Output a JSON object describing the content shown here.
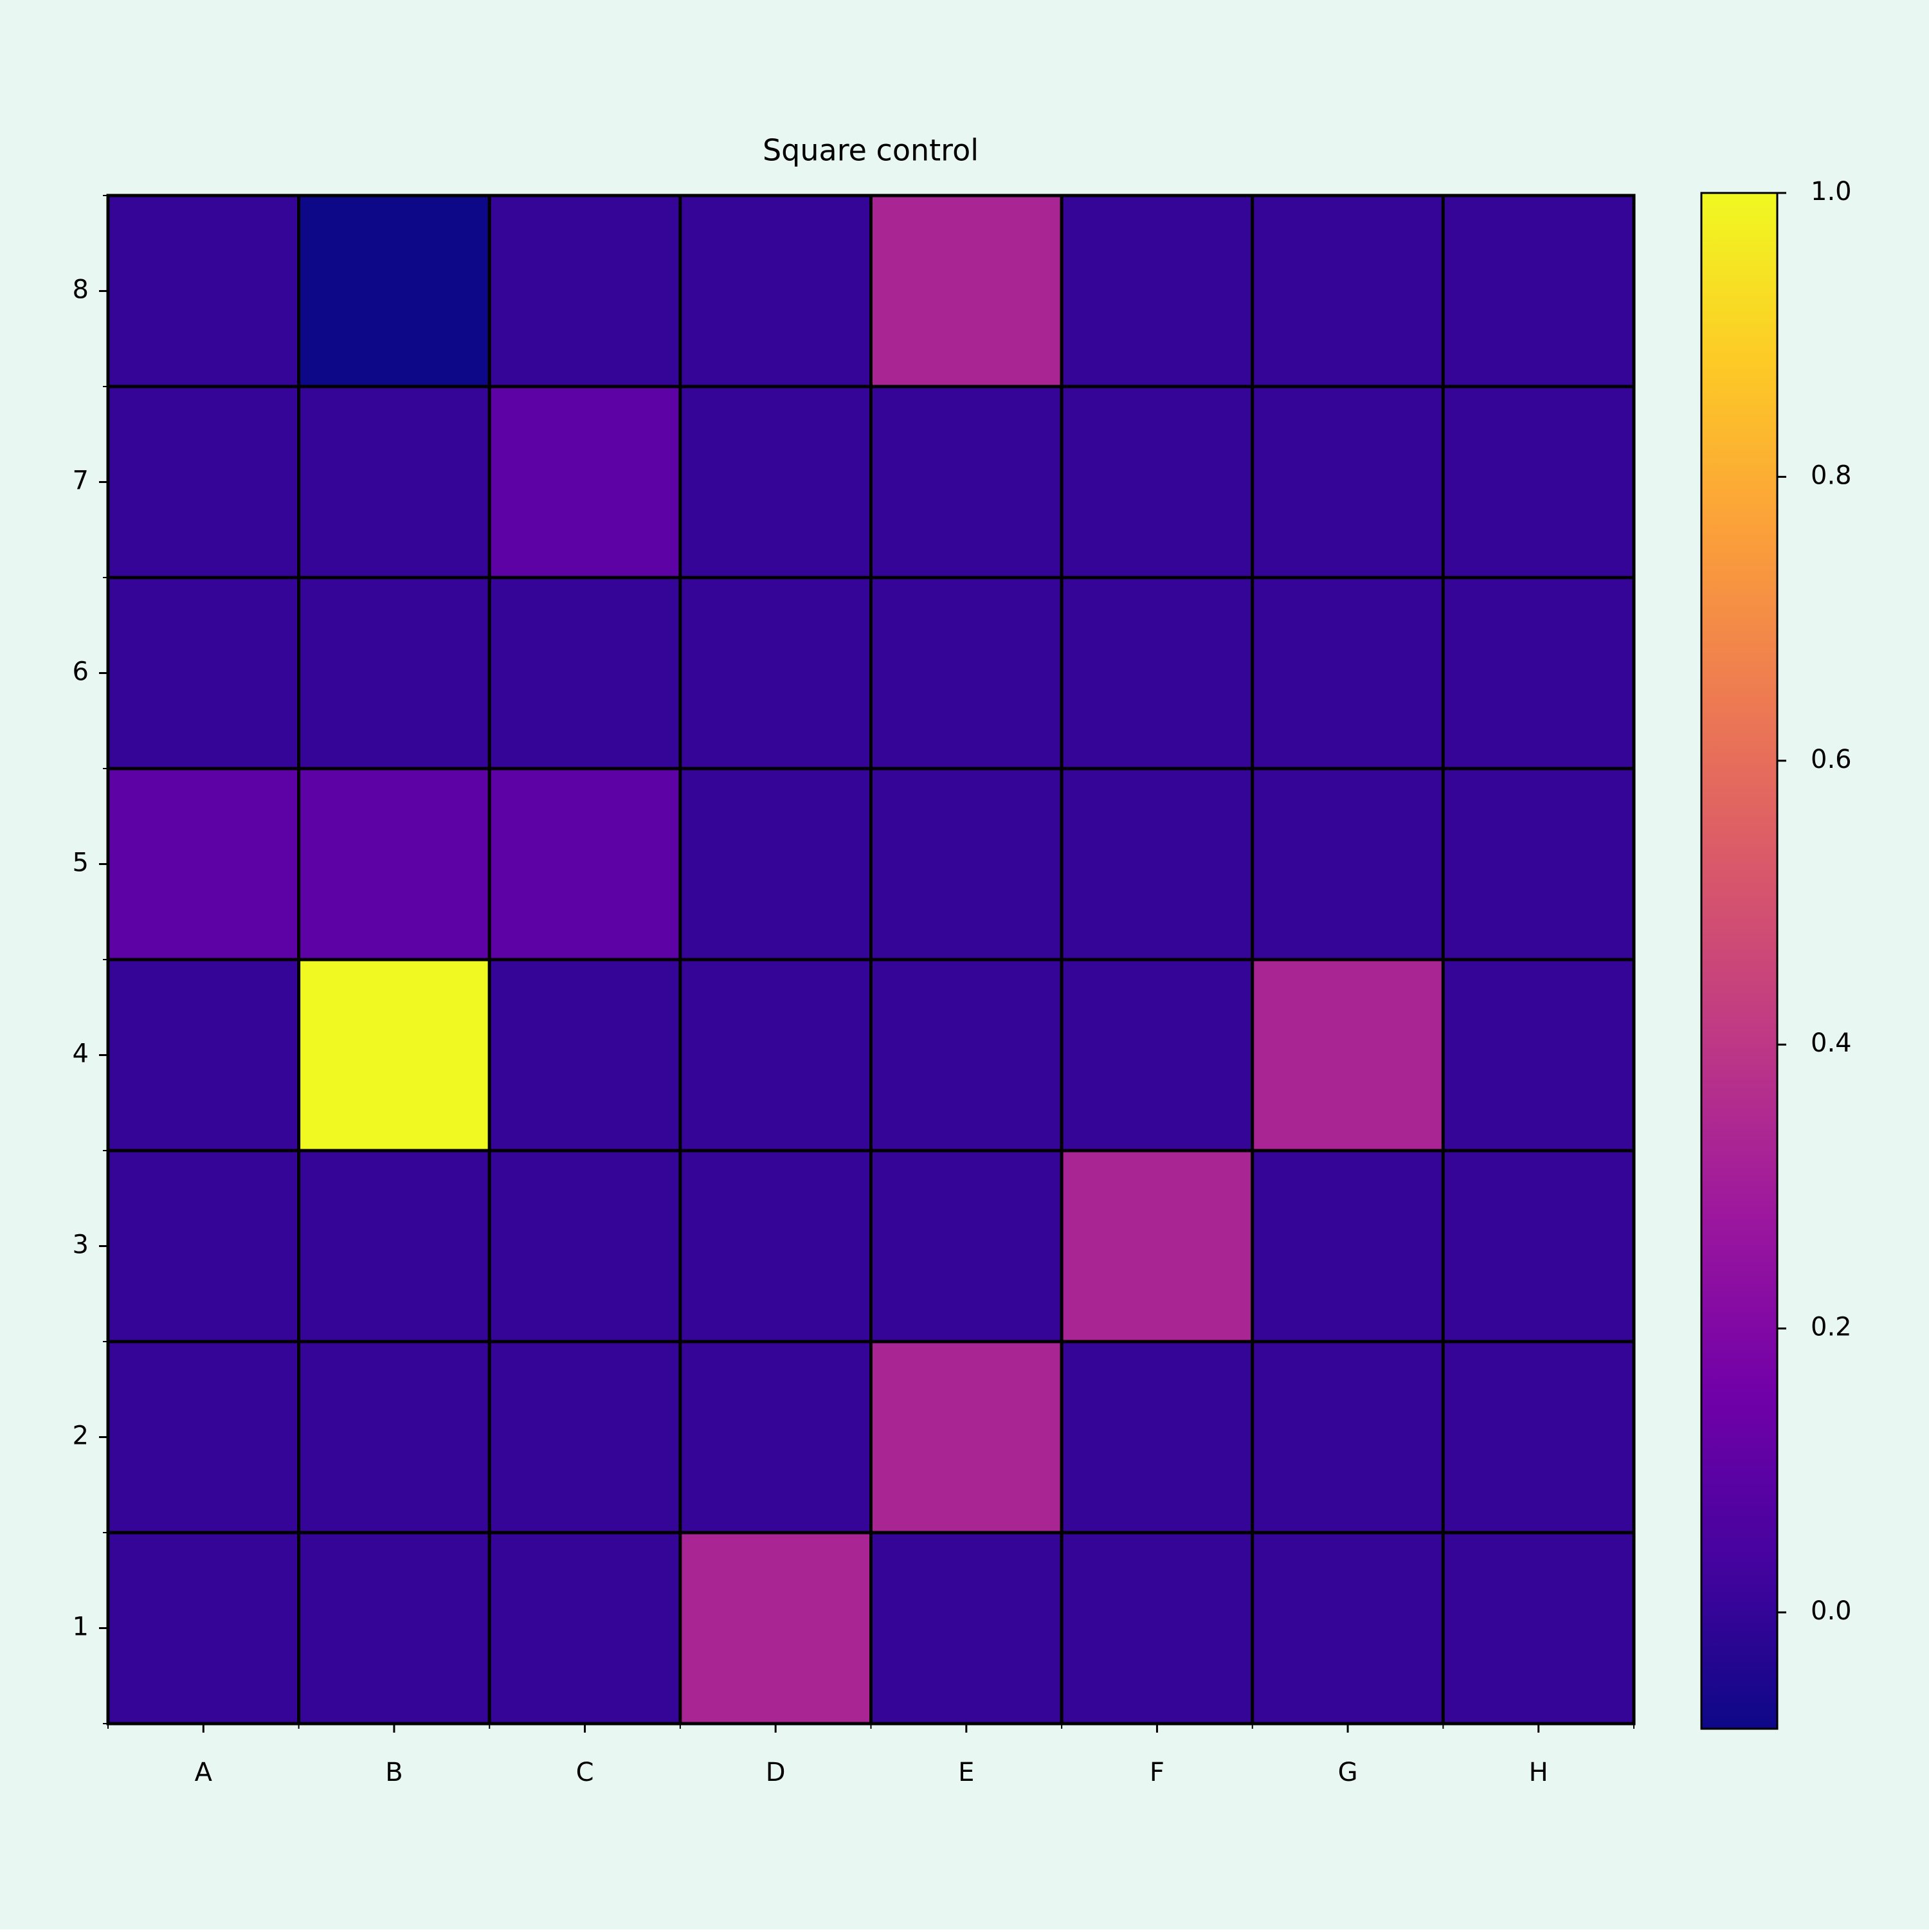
{
  "chart_data": {
    "type": "heatmap",
    "title": "Square control",
    "x_categories": [
      "A",
      "B",
      "C",
      "D",
      "E",
      "F",
      "G",
      "H"
    ],
    "y_categories": [
      "8",
      "7",
      "6",
      "5",
      "4",
      "3",
      "2",
      "1"
    ],
    "values": [
      [
        0,
        -0.082,
        0,
        0,
        0.33,
        0,
        0,
        0
      ],
      [
        0,
        0,
        0.1,
        0,
        0,
        0,
        0,
        0
      ],
      [
        0,
        0,
        0,
        0,
        0,
        0,
        0,
        0
      ],
      [
        0.1,
        0.1,
        0.1,
        0,
        0,
        0,
        0,
        0
      ],
      [
        0,
        1.0,
        0,
        0,
        0,
        0,
        0.33,
        0
      ],
      [
        0,
        0,
        0,
        0,
        0,
        0.33,
        0,
        0
      ],
      [
        0,
        0,
        0,
        0,
        0.33,
        0,
        0,
        0
      ],
      [
        0,
        0,
        0,
        0.33,
        0,
        0,
        0,
        0
      ]
    ],
    "colormap": "plasma",
    "clim": [
      -0.082,
      1.0
    ],
    "cticks": [
      {
        "value": 0,
        "label": "0.0"
      },
      0.2,
      0.4,
      0.6,
      0.8,
      {
        "value": 1,
        "label": "1.0"
      }
    ],
    "background": "#e8f7f1"
  }
}
